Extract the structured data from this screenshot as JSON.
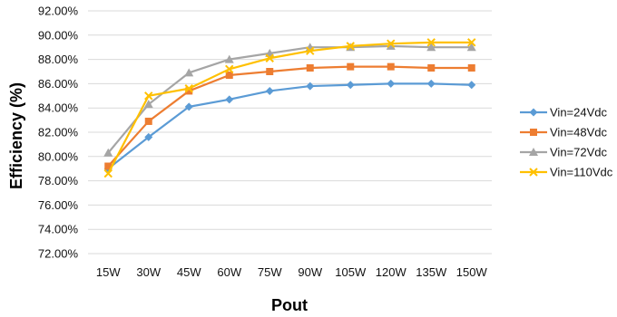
{
  "chart_data": {
    "type": "line",
    "title": "",
    "xlabel": "Pout",
    "ylabel": "Efficiency (%)",
    "categories": [
      "15W",
      "30W",
      "45W",
      "60W",
      "75W",
      "90W",
      "105W",
      "120W",
      "135W",
      "150W"
    ],
    "ylim": [
      72,
      92
    ],
    "ytick_step": 2,
    "ytick_format": "percent_2dp",
    "grid": "horizontal",
    "legend_position": "right",
    "series": [
      {
        "name": "Vin=24Vdc",
        "color": "#5b9bd5",
        "marker": "diamond",
        "values": [
          79.0,
          81.6,
          84.1,
          84.7,
          85.4,
          85.8,
          85.9,
          86.0,
          86.0,
          85.9
        ]
      },
      {
        "name": "Vin=48Vdc",
        "color": "#ed7d31",
        "marker": "square",
        "values": [
          79.2,
          82.9,
          85.4,
          86.7,
          87.0,
          87.3,
          87.4,
          87.4,
          87.3,
          87.3
        ]
      },
      {
        "name": "Vin=72Vdc",
        "color": "#a5a5a5",
        "marker": "triangle",
        "values": [
          80.3,
          84.3,
          86.9,
          88.0,
          88.5,
          89.0,
          89.0,
          89.1,
          89.0,
          89.0
        ]
      },
      {
        "name": "Vin=110Vdc",
        "color": "#ffc000",
        "marker": "cross",
        "values": [
          78.6,
          85.0,
          85.6,
          87.2,
          88.1,
          88.7,
          89.1,
          89.3,
          89.4,
          89.4
        ]
      }
    ]
  }
}
